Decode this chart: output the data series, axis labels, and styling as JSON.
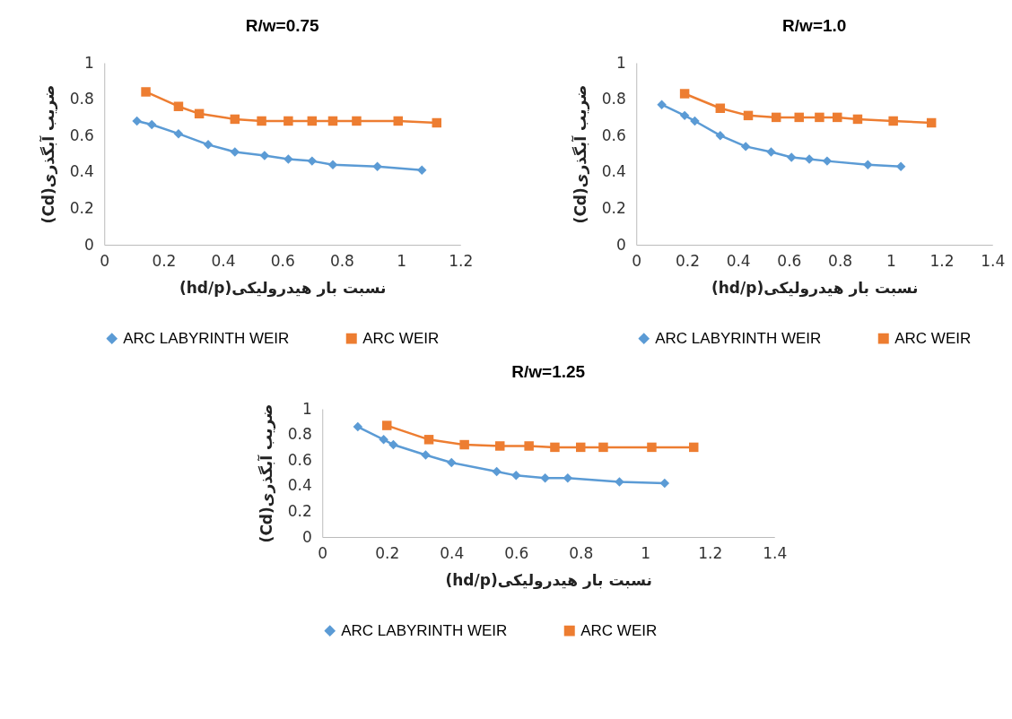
{
  "chart_data": [
    {
      "type": "line",
      "title": "R/w=0.75",
      "xlabel": "(hd/p)نسبت بار هیدرولیکی",
      "ylabel": "(Cd)ضریب آبگذری",
      "xlim": [
        0,
        1.2
      ],
      "xticks": [
        0,
        0.2,
        0.4,
        0.6,
        0.8,
        1,
        1.2
      ],
      "ylim": [
        0,
        1
      ],
      "yticks": [
        0,
        0.2,
        0.4,
        0.6,
        0.8,
        1
      ],
      "legend": "bottom",
      "series": [
        {
          "name": "ARC LABYRINTH WEIR",
          "color": "#5b9bd5",
          "marker": "diamond",
          "x": [
            0.11,
            0.16,
            0.25,
            0.35,
            0.44,
            0.54,
            0.62,
            0.7,
            0.77,
            0.92,
            1.07
          ],
          "values": [
            0.68,
            0.66,
            0.61,
            0.55,
            0.51,
            0.49,
            0.47,
            0.46,
            0.44,
            0.43,
            0.41
          ]
        },
        {
          "name": "ARC WEIR",
          "color": "#ed7d31",
          "marker": "square",
          "x": [
            0.14,
            0.25,
            0.32,
            0.44,
            0.53,
            0.62,
            0.7,
            0.77,
            0.85,
            0.99,
            1.12
          ],
          "values": [
            0.84,
            0.76,
            0.72,
            0.69,
            0.68,
            0.68,
            0.68,
            0.68,
            0.68,
            0.68,
            0.67
          ]
        }
      ]
    },
    {
      "type": "line",
      "title": "R/w=1.0",
      "xlabel": "(hd/p)نسبت بار هیدرولیکی",
      "ylabel": "(Cd)ضریب آبگذری",
      "xlim": [
        0,
        1.4
      ],
      "xticks": [
        0,
        0.2,
        0.4,
        0.6,
        0.8,
        1,
        1.2,
        1.4
      ],
      "ylim": [
        0,
        1
      ],
      "yticks": [
        0,
        0.2,
        0.4,
        0.6,
        0.8,
        1
      ],
      "legend": "bottom",
      "series": [
        {
          "name": "ARC LABYRINTH WEIR",
          "color": "#5b9bd5",
          "marker": "diamond",
          "x": [
            0.1,
            0.19,
            0.23,
            0.33,
            0.43,
            0.53,
            0.61,
            0.68,
            0.75,
            0.91,
            1.04
          ],
          "values": [
            0.77,
            0.71,
            0.68,
            0.6,
            0.54,
            0.51,
            0.48,
            0.47,
            0.46,
            0.44,
            0.43
          ]
        },
        {
          "name": "ARC WEIR",
          "color": "#ed7d31",
          "marker": "square",
          "x": [
            0.19,
            0.33,
            0.44,
            0.55,
            0.64,
            0.72,
            0.79,
            0.87,
            1.01,
            1.16
          ],
          "values": [
            0.83,
            0.75,
            0.71,
            0.7,
            0.7,
            0.7,
            0.7,
            0.69,
            0.68,
            0.67
          ]
        }
      ]
    },
    {
      "type": "line",
      "title": "R/w=1.25",
      "xlabel": "(hd/p)نسبت بار هیدرولیکی",
      "ylabel": "(Cd)ضریب آبگذری",
      "xlim": [
        0,
        1.4
      ],
      "xticks": [
        0,
        0.2,
        0.4,
        0.6,
        0.8,
        1,
        1.2,
        1.4
      ],
      "ylim": [
        0,
        1
      ],
      "yticks": [
        0,
        0.2,
        0.4,
        0.6,
        0.8,
        1
      ],
      "legend": "bottom",
      "series": [
        {
          "name": "ARC LABYRINTH WEIR",
          "color": "#5b9bd5",
          "marker": "diamond",
          "x": [
            0.11,
            0.19,
            0.22,
            0.32,
            0.4,
            0.54,
            0.6,
            0.69,
            0.76,
            0.92,
            1.06
          ],
          "values": [
            0.86,
            0.76,
            0.72,
            0.64,
            0.58,
            0.51,
            0.48,
            0.46,
            0.46,
            0.43,
            0.42
          ]
        },
        {
          "name": "ARC WEIR",
          "color": "#ed7d31",
          "marker": "square",
          "x": [
            0.2,
            0.33,
            0.44,
            0.55,
            0.64,
            0.72,
            0.8,
            0.87,
            1.02,
            1.15
          ],
          "values": [
            0.87,
            0.76,
            0.72,
            0.71,
            0.71,
            0.7,
            0.7,
            0.7,
            0.7,
            0.7
          ]
        }
      ]
    }
  ]
}
